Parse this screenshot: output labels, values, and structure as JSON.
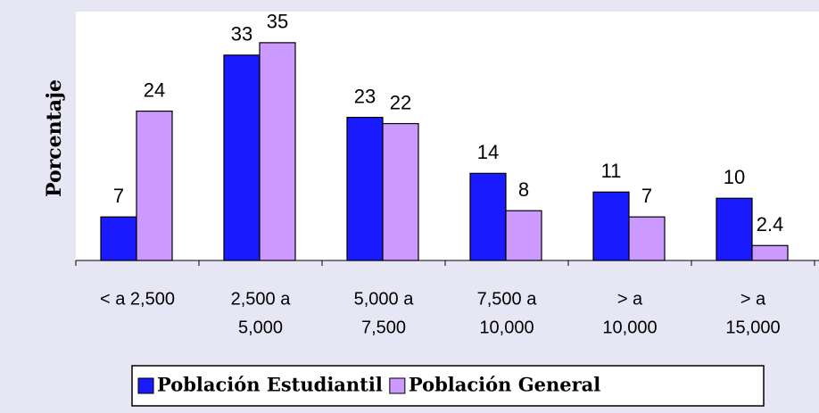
{
  "chart_data": {
    "type": "bar",
    "y_label": "Porcentaje",
    "categories": [
      [
        "< a 2,500"
      ],
      [
        "2,500 a",
        "5,000"
      ],
      [
        "5,000 a",
        "7,500"
      ],
      [
        "7,500 a",
        "10,000"
      ],
      [
        "> a",
        "10,000"
      ],
      [
        "> a",
        "15,000"
      ]
    ],
    "series": [
      {
        "name": "Población Estudiantil",
        "color": "#1a1aff",
        "values": [
          7,
          33,
          23,
          14,
          11,
          10
        ]
      },
      {
        "name": "Población General",
        "color": "#cc99ff",
        "values": [
          24,
          35,
          22,
          8,
          7,
          2.4
        ]
      }
    ],
    "ylim": [
      0,
      40
    ],
    "legend": "bottom"
  }
}
